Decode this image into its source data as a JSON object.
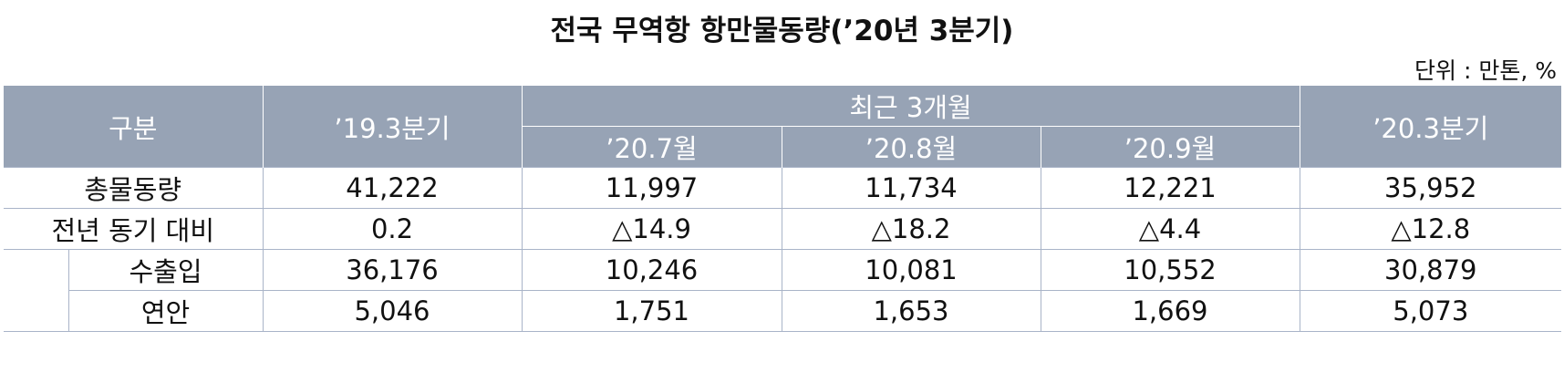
{
  "title": "전국 무역항 항만물동량(’20년 3분기)",
  "unit": "단위 : 만톤, %",
  "table": {
    "header": {
      "group": "구분",
      "prev": "’19.3분기",
      "recent": "최근 3개월",
      "months": [
        "’20.7월",
        "’20.8월",
        "’20.9월"
      ],
      "current": "’20.3분기"
    },
    "rows": [
      [
        "총물동량",
        "41,222",
        "11,997",
        "11,734",
        "12,221",
        "35,952"
      ],
      [
        "전년 동기 대비",
        "0.2",
        "△14.9",
        "△18.2",
        "△4.4",
        "△12.8"
      ],
      [
        "수출입",
        "36,176",
        "10,246",
        "10,081",
        "10,552",
        "30,879"
      ],
      [
        "연안",
        "5,046",
        "1,751",
        "1,653",
        "1,669",
        "5,073"
      ]
    ]
  }
}
